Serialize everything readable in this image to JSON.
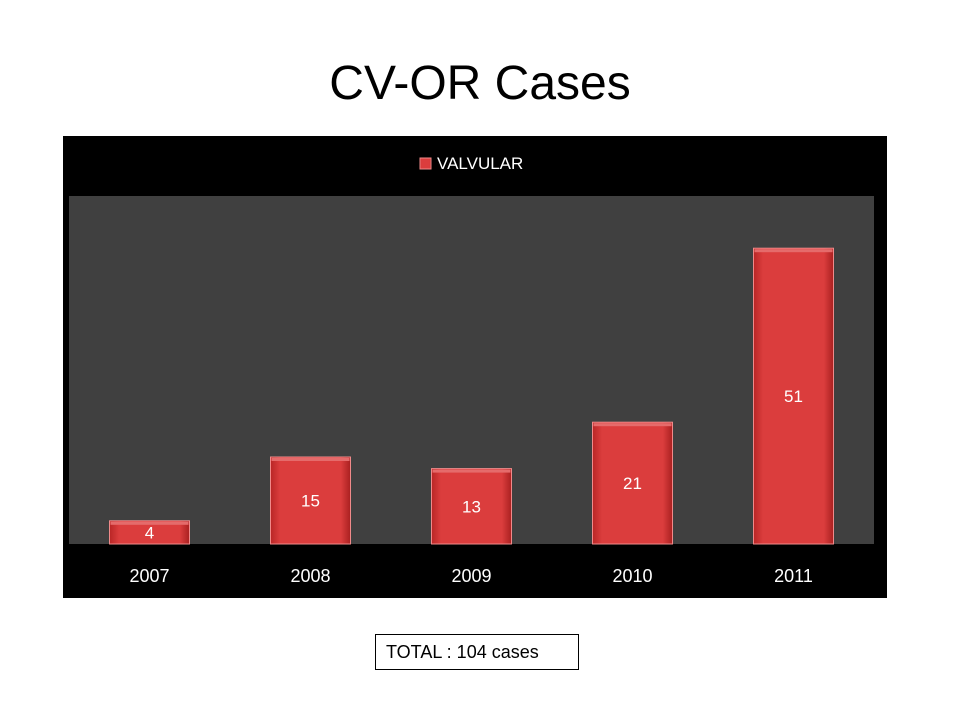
{
  "slide": {
    "title": "CV-OR Cases",
    "total_text": "TOTAL : 104 cases"
  },
  "colors": {
    "chart_background": "#000000",
    "plot_background": "#404040",
    "bar_fill": "#d63a3a",
    "bar_highlight": "#e56b6b",
    "text": "#ffffff"
  },
  "chart_data": {
    "type": "bar",
    "title": "",
    "xlabel": "",
    "ylabel": "",
    "categories": [
      "2007",
      "2008",
      "2009",
      "2010",
      "2011"
    ],
    "series": [
      {
        "name": "VALVULAR",
        "values": [
          4,
          15,
          13,
          21,
          51
        ]
      }
    ],
    "data_labels": true,
    "ylim": [
      0,
      60
    ],
    "grid": false,
    "legend_position": "top"
  }
}
